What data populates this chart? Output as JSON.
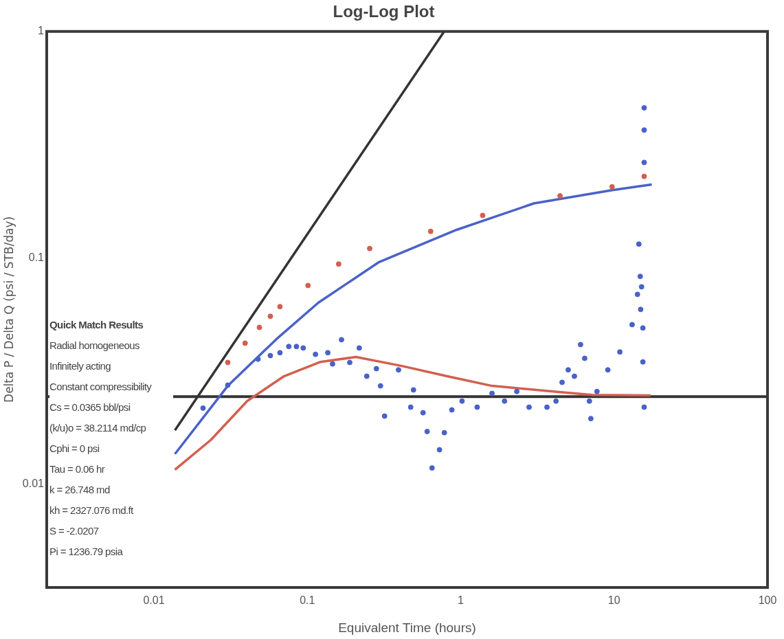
{
  "chart_data": {
    "type": "scatter",
    "title": "Log-Log Plot",
    "xlabel": "Equivalent Time (hours)",
    "ylabel": "Delta P / Delta Q (psi / STB/day)",
    "log": "xy",
    "xlim": [
      0.002,
      100
    ],
    "ylim": [
      0.0035,
      1
    ],
    "xticks": [
      0.01,
      0.1,
      1,
      10,
      100
    ],
    "yticks": [
      0.01,
      0.1,
      1
    ],
    "grid": false,
    "legend": false,
    "ref_lines": [
      {
        "axis": "y",
        "value": 0.0244,
        "color": "#333333"
      }
    ],
    "series": [
      {
        "type": "line",
        "marker": "none",
        "color": "#333333",
        "x": [
          0.0137,
          0.78
        ],
        "values": [
          0.0173,
          1
        ]
      },
      {
        "type": "line",
        "marker": "none",
        "color": "#4a62c8",
        "x": [
          0.0137,
          0.0303,
          0.063,
          0.118,
          0.294,
          0.94,
          3.0,
          9.7,
          17.6
        ],
        "values": [
          0.0136,
          0.0272,
          0.0438,
          0.0634,
          0.0959,
          0.133,
          0.174,
          0.199,
          0.211
        ]
      },
      {
        "type": "line",
        "marker": "none",
        "color": "#d2604f",
        "x": [
          0.0137,
          0.0235,
          0.0405,
          0.0705,
          0.122,
          0.207,
          0.413,
          0.814,
          1.6,
          4.0,
          7.2,
          17.3
        ],
        "values": [
          0.0116,
          0.0157,
          0.0233,
          0.03,
          0.0347,
          0.0365,
          0.0333,
          0.03,
          0.0272,
          0.0257,
          0.0248,
          0.0247
        ]
      },
      {
        "type": "scatter",
        "marker": "circle",
        "color": "#d2604f",
        "x": [
          0.0303,
          0.0393,
          0.0487,
          0.0574,
          0.0663,
          0.101,
          0.16,
          0.255,
          0.637,
          1.39,
          4.44,
          9.7,
          15.7
        ],
        "values": [
          0.0345,
          0.042,
          0.0493,
          0.0552,
          0.0609,
          0.0755,
          0.0939,
          0.11,
          0.131,
          0.154,
          0.188,
          0.206,
          0.229
        ]
      },
      {
        "type": "scatter",
        "marker": "circle",
        "color": "#4a62c8",
        "x": [
          0.0209,
          0.0303,
          0.0477,
          0.0574,
          0.0663,
          0.0757,
          0.0849,
          0.094,
          0.113,
          0.136,
          0.146,
          0.167,
          0.189,
          0.218,
          0.244,
          0.282,
          0.3,
          0.319,
          0.393,
          0.492,
          0.472,
          0.568,
          0.604,
          0.65,
          0.727,
          0.782,
          0.875,
          1.02,
          1.28,
          1.6,
          1.93,
          2.32,
          2.79,
          3.65,
          4.18,
          4.58,
          5.02,
          5.51,
          6.04,
          6.43,
          6.9,
          7.05,
          7.73,
          9.1,
          10.9,
          13.1,
          14.9,
          14.2,
          15.1,
          14.8,
          14.5,
          15.4,
          15.4,
          15.7,
          15.7,
          15.7,
          15.7
        ],
        "values": [
          0.0217,
          0.0274,
          0.0357,
          0.037,
          0.0381,
          0.0406,
          0.0406,
          0.04,
          0.0375,
          0.0381,
          0.034,
          0.0435,
          0.0345,
          0.04,
          0.03,
          0.0324,
          0.0272,
          0.02,
          0.032,
          0.0261,
          0.0219,
          0.0207,
          0.0171,
          0.0118,
          0.0142,
          0.0169,
          0.0213,
          0.0233,
          0.0219,
          0.0252,
          0.0233,
          0.0257,
          0.0219,
          0.0219,
          0.0233,
          0.0282,
          0.032,
          0.03,
          0.0414,
          0.036,
          0.0233,
          0.0195,
          0.0257,
          0.032,
          0.0384,
          0.0507,
          0.0592,
          0.069,
          0.0745,
          0.0828,
          0.115,
          0.049,
          0.0347,
          0.0219,
          0.46,
          0.367,
          0.264
        ]
      }
    ],
    "annotations": [
      "Quick Match Results",
      "Radial homogeneous",
      "Infinitely acting",
      "Constant compressibility",
      "Cs = 0.0365 bbl/psi",
      "(k/u)o = 38.2114 md/cp",
      "Cphi = 0 psi",
      "Tau = 0.06 hr",
      "k = 26.748 md",
      "kh = 2327.076 md.ft",
      "S = -2.0207",
      "Pi = 1236.79 psia"
    ]
  }
}
